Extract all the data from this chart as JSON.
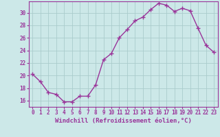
{
  "x": [
    0,
    1,
    2,
    3,
    4,
    5,
    6,
    7,
    8,
    9,
    10,
    11,
    12,
    13,
    14,
    15,
    16,
    17,
    18,
    19,
    20,
    21,
    22,
    23
  ],
  "y": [
    20.2,
    19.0,
    17.3,
    17.0,
    15.8,
    15.8,
    16.7,
    16.7,
    18.5,
    22.5,
    23.5,
    26.0,
    27.3,
    28.7,
    29.3,
    30.5,
    31.5,
    31.2,
    30.2,
    30.7,
    30.3,
    27.5,
    24.8,
    23.7
  ],
  "line_color": "#993399",
  "marker": "+",
  "marker_size": 4,
  "marker_lw": 1.0,
  "bg_color": "#cce8e8",
  "grid_color": "#aacccc",
  "xlabel": "Windchill (Refroidissement éolien,°C)",
  "xlabel_color": "#993399",
  "ylabel_ticks": [
    16,
    18,
    20,
    22,
    24,
    26,
    28,
    30
  ],
  "xtick_labels": [
    "0",
    "1",
    "2",
    "3",
    "4",
    "5",
    "6",
    "7",
    "8",
    "9",
    "10",
    "11",
    "12",
    "13",
    "14",
    "15",
    "16",
    "17",
    "18",
    "19",
    "20",
    "21",
    "22",
    "23"
  ],
  "ylim": [
    15.0,
    31.8
  ],
  "xlim": [
    -0.5,
    23.5
  ],
  "tick_color": "#993399",
  "tick_fontsize": 5.5,
  "xlabel_fontsize": 6.5,
  "spine_color": "#993399",
  "linewidth": 1.0
}
